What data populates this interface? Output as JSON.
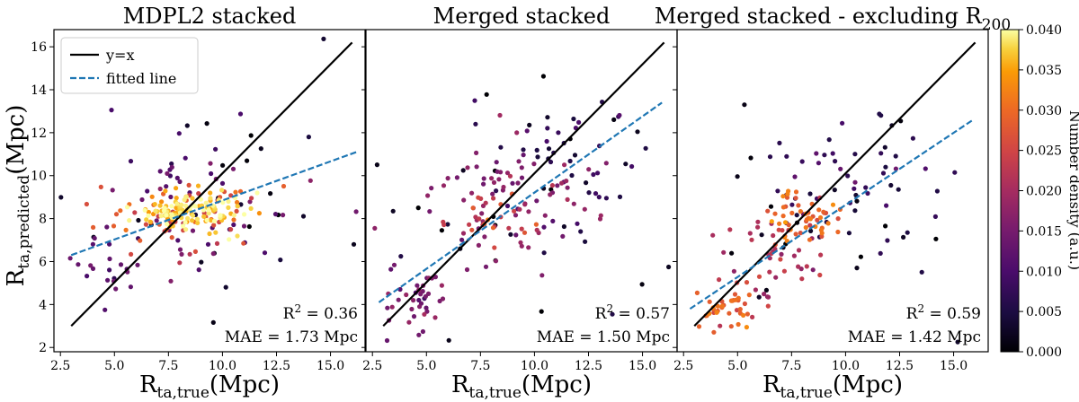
{
  "chart_data": {
    "type": "scatter",
    "colorbar": {
      "label": "Number density (a.u.)",
      "range": [
        0.0,
        0.04
      ],
      "ticks": [
        "0.000",
        "0.005",
        "0.010",
        "0.015",
        "0.020",
        "0.025",
        "0.030",
        "0.035",
        "0.040"
      ]
    },
    "legend": {
      "placement": "top-left",
      "identity_label": "y=x",
      "fit_label": "fitted line"
    },
    "ylabel_main": "R",
    "ylabel_sub": "ta,predicted",
    "ylabel_unit": "(Mpc)",
    "ylim": [
      1.8,
      16.8
    ],
    "yticks": [
      2,
      4,
      6,
      8,
      10,
      12,
      14,
      16
    ],
    "xlim": [
      2.2,
      16.6
    ],
    "xticks": [
      2.5,
      5.0,
      7.5,
      10.0,
      12.5,
      15.0
    ],
    "xtick_labels": [
      "2.5",
      "5.0",
      "7.5",
      "10.0",
      "12.5",
      "15.0"
    ],
    "identity_line": {
      "x": [
        3.0,
        16.0
      ],
      "y": [
        3.0,
        16.2
      ]
    },
    "panels": [
      {
        "title": "MDPL2 stacked",
        "title_sub": "",
        "xlabel_main": "R",
        "xlabel_sub": "ta,true",
        "xlabel_unit": "(Mpc)",
        "r2_prefix": "R",
        "r2_sup": "2",
        "r2_value": " = 0.36",
        "mae": "MAE = 1.73 Mpc",
        "fitted_line": {
          "x": [
            3.0,
            16.2
          ],
          "y": [
            6.3,
            11.1
          ]
        },
        "seed": 11,
        "clusters": [
          {
            "cx": 8.6,
            "cy": 8.3,
            "sx": 1.3,
            "sy": 0.45,
            "n": 120,
            "d": 0.038
          },
          {
            "cx": 8.4,
            "cy": 8.1,
            "sx": 1.9,
            "sy": 0.8,
            "n": 60,
            "d": 0.027
          },
          {
            "cx": 9.5,
            "cy": 8.7,
            "sx": 2.6,
            "sy": 1.5,
            "n": 50,
            "d": 0.012
          },
          {
            "cx": 4.5,
            "cy": 5.8,
            "sx": 0.9,
            "sy": 1.0,
            "n": 22,
            "d": 0.012
          },
          {
            "cx": 9.5,
            "cy": 9.0,
            "sx": 4.0,
            "sy": 2.8,
            "n": 28,
            "d": 0.002
          }
        ]
      },
      {
        "title": "Merged stacked",
        "title_sub": "",
        "xlabel_main": "R",
        "xlabel_sub": "ta,true",
        "xlabel_unit": "(Mpc)",
        "r2_prefix": "R",
        "r2_sup": "2",
        "r2_value": " = 0.57",
        "mae": "MAE = 1.50 Mpc",
        "fitted_line": {
          "x": [
            2.8,
            15.9
          ],
          "y": [
            4.1,
            13.4
          ]
        },
        "seed": 23,
        "clusters": [
          {
            "cx": 8.1,
            "cy": 8.0,
            "sx": 0.9,
            "sy": 0.5,
            "n": 25,
            "d": 0.026
          },
          {
            "cx": 8.5,
            "cy": 8.5,
            "sx": 2.2,
            "sy": 1.4,
            "n": 80,
            "d": 0.017
          },
          {
            "cx": 4.5,
            "cy": 4.2,
            "sx": 1.0,
            "sy": 1.0,
            "n": 45,
            "d": 0.015
          },
          {
            "cx": 11.5,
            "cy": 10.5,
            "sx": 2.2,
            "sy": 1.8,
            "n": 40,
            "d": 0.008
          },
          {
            "cx": 8.5,
            "cy": 8.5,
            "sx": 4.2,
            "sy": 3.2,
            "n": 40,
            "d": 0.002
          }
        ]
      },
      {
        "title": "Merged stacked - excluding R",
        "title_sub": "200",
        "xlabel_main": "R",
        "xlabel_sub": "ta,true",
        "xlabel_unit": "(Mpc)",
        "r2_prefix": "R",
        "r2_sup": "2",
        "r2_value": " = 0.59",
        "mae": "MAE = 1.42 Mpc",
        "fitted_line": {
          "x": [
            2.8,
            15.9
          ],
          "y": [
            3.8,
            12.6
          ]
        },
        "seed": 37,
        "clusters": [
          {
            "cx": 8.3,
            "cy": 8.0,
            "sx": 0.9,
            "sy": 0.6,
            "n": 55,
            "d": 0.029
          },
          {
            "cx": 4.5,
            "cy": 3.9,
            "sx": 0.8,
            "sy": 0.5,
            "n": 40,
            "d": 0.028
          },
          {
            "cx": 6.5,
            "cy": 6.0,
            "sx": 1.3,
            "sy": 1.0,
            "n": 40,
            "d": 0.021
          },
          {
            "cx": 10.5,
            "cy": 9.8,
            "sx": 2.0,
            "sy": 1.5,
            "n": 45,
            "d": 0.009
          },
          {
            "cx": 8.5,
            "cy": 8.0,
            "sx": 4.0,
            "sy": 3.0,
            "n": 35,
            "d": 0.002
          }
        ]
      }
    ]
  }
}
